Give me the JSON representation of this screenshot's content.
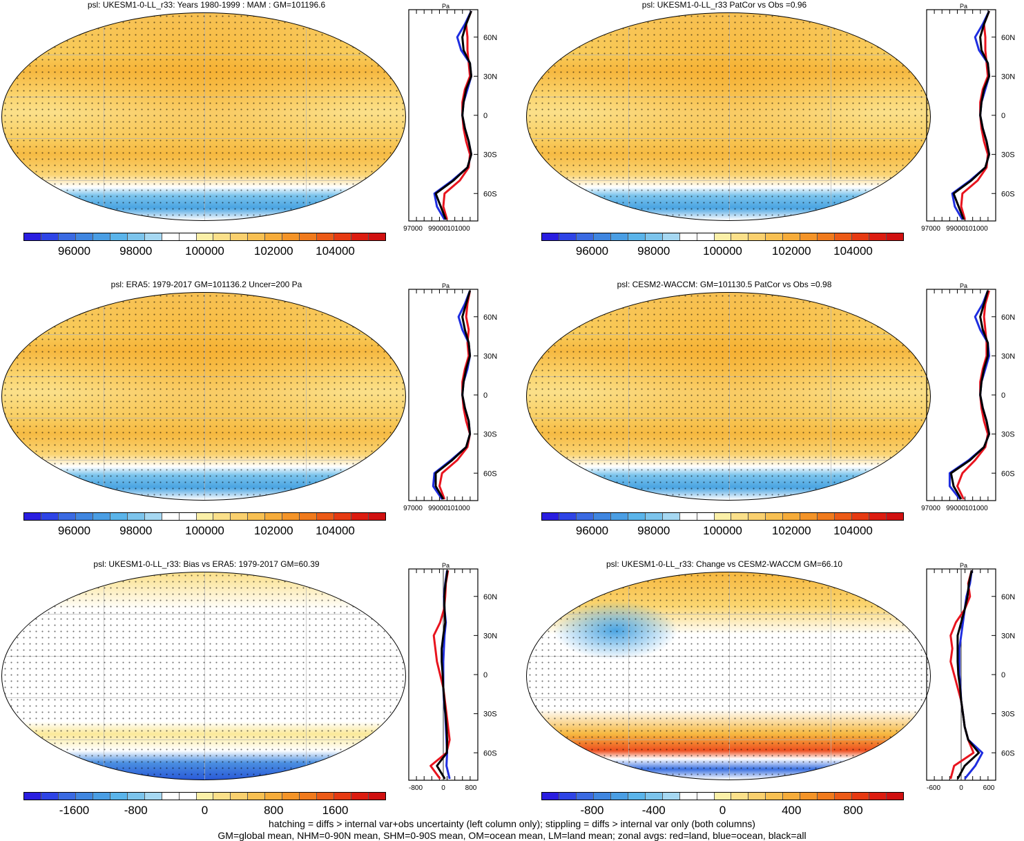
{
  "panels": [
    {
      "title": "psl: UKESM1-0-LL_r33: Years 1980-1999 : MAM : GM=101196.6",
      "kind": "mean",
      "colorbar_labels": [
        "96000",
        "98000",
        "100000",
        "102000",
        "104000"
      ],
      "profile_xticks": [
        "97000",
        "99000",
        "101000"
      ]
    },
    {
      "title": "psl: UKESM1-0-LL_r33 PatCor vs Obs =0.96",
      "kind": "mean",
      "colorbar_labels": [
        "96000",
        "98000",
        "100000",
        "102000",
        "104000"
      ],
      "profile_xticks": [
        "97000",
        "99000",
        "101000"
      ]
    },
    {
      "title": "psl: ERA5: 1979-2017 GM=101136.2 Uncer=200 Pa",
      "kind": "mean",
      "colorbar_labels": [
        "96000",
        "98000",
        "100000",
        "102000",
        "104000"
      ],
      "profile_xticks": [
        "97000",
        "99000",
        "101000"
      ]
    },
    {
      "title": "psl: CESM2-WACCM: GM=101130.5 PatCor vs Obs =0.98",
      "kind": "mean",
      "colorbar_labels": [
        "96000",
        "98000",
        "100000",
        "102000",
        "104000"
      ],
      "profile_xticks": [
        "97000",
        "99000",
        "101000"
      ]
    },
    {
      "title": "psl: UKESM1-0-LL_r33: Bias vs ERA5: 1979-2017 GM=60.39",
      "kind": "bias",
      "colorbar_labels": [
        "-1600",
        "-800",
        "0",
        "800",
        "1600"
      ],
      "profile_xticks": [
        "-800",
        "0",
        "800"
      ]
    },
    {
      "title": "psl: UKESM1-0-LL_r33: Change vs CESM2-WACCM GM=66.10",
      "kind": "change",
      "colorbar_labels": [
        "-800",
        "-400",
        "0",
        "400",
        "800"
      ],
      "profile_xticks": [
        "-600",
        "0",
        "600"
      ]
    }
  ],
  "profile": {
    "unit": "Pa",
    "lat_labels": [
      "60N",
      "30N",
      "0",
      "30S",
      "60S"
    ]
  },
  "footer": {
    "line1": "hatching = diffs > internal var+obs uncertainty (left column only); stippling = diffs > internal var only (both columns)",
    "line2": "GM=global mean, NHM=0-90N mean, SHM=0-90S mean, OM=ocean mean, LM=land mean; zonal avgs: red=land, blue=ocean, black=all"
  },
  "colors": {
    "land": "#e8141e",
    "ocean": "#1f2ee0",
    "all": "#000000",
    "scale": [
      "#2a1ee0",
      "#2e44e6",
      "#3a6ae2",
      "#3f86e0",
      "#4a9ee4",
      "#5ab4ea",
      "#7cc4ec",
      "#a6d8f2",
      "#ffffff",
      "#ffffff",
      "#fbf0a8",
      "#fbe08a",
      "#fad06e",
      "#f8c052",
      "#f6ac3a",
      "#f49428",
      "#f07a1c",
      "#ec5a16",
      "#e63a12",
      "#dc1c10",
      "#d01010"
    ]
  },
  "chart_data": [
    {
      "type": "heatmap",
      "title": "psl: UKESM1-0-LL_r33: Years 1980-1999 : MAM : GM=101196.6",
      "units": "Pa",
      "clim": [
        95000,
        105000
      ],
      "zonal_mean": {
        "lat": [
          80,
          70,
          60,
          50,
          40,
          30,
          20,
          10,
          0,
          -10,
          -20,
          -30,
          -40,
          -50,
          -60,
          -70,
          -80
        ],
        "land": [
          101700,
          101300,
          101400,
          101400,
          101500,
          101600,
          101200,
          101000,
          101000,
          101100,
          101300,
          101600,
          101500,
          100800,
          99600,
          99500,
          99800
        ],
        "ocean": [
          101700,
          101200,
          100600,
          100900,
          101600,
          101700,
          101400,
          101100,
          101000,
          101200,
          101500,
          101700,
          101400,
          100200,
          98800,
          99000,
          99600
        ],
        "all": [
          101700,
          101300,
          101000,
          101100,
          101600,
          101700,
          101300,
          101100,
          101000,
          101200,
          101500,
          101700,
          101400,
          100300,
          98900,
          99300,
          99700
        ]
      },
      "xlim": [
        97000,
        102000
      ]
    },
    {
      "type": "heatmap",
      "title": "psl: UKESM1-0-LL_r33 PatCor vs Obs =0.96",
      "units": "Pa",
      "clim": [
        95000,
        105000
      ],
      "zonal_mean": {
        "lat": [
          80,
          70,
          60,
          50,
          40,
          30,
          20,
          10,
          0,
          -10,
          -20,
          -30,
          -40,
          -50,
          -60,
          -70,
          -80
        ],
        "land": [
          101700,
          101300,
          101400,
          101400,
          101500,
          101600,
          101200,
          101000,
          101000,
          101100,
          101300,
          101600,
          101500,
          100800,
          99600,
          99500,
          99800
        ],
        "ocean": [
          101700,
          101200,
          100600,
          100900,
          101600,
          101700,
          101400,
          101100,
          101000,
          101200,
          101500,
          101700,
          101400,
          100200,
          98800,
          99000,
          99600
        ],
        "all": [
          101700,
          101300,
          101000,
          101100,
          101600,
          101700,
          101300,
          101100,
          101000,
          101200,
          101500,
          101700,
          101400,
          100300,
          98900,
          99300,
          99700
        ]
      },
      "xlim": [
        97000,
        102000
      ]
    },
    {
      "type": "heatmap",
      "title": "psl: ERA5: 1979-2017 GM=101136.2 Uncer=200 Pa",
      "units": "Pa",
      "clim": [
        95000,
        105000
      ],
      "zonal_mean": {
        "lat": [
          80,
          70,
          60,
          50,
          40,
          30,
          20,
          10,
          0,
          -10,
          -20,
          -30,
          -40,
          -50,
          -60,
          -70,
          -80
        ],
        "land": [
          101600,
          101400,
          101300,
          101500,
          101400,
          101500,
          101200,
          101000,
          101000,
          101100,
          101300,
          101600,
          101400,
          100600,
          99400,
          99200,
          99600
        ],
        "ocean": [
          101600,
          101200,
          100700,
          101000,
          101500,
          101600,
          101400,
          101100,
          101000,
          101200,
          101500,
          101600,
          101300,
          100100,
          98800,
          98700,
          99400
        ],
        "all": [
          101600,
          101300,
          101000,
          101200,
          101500,
          101600,
          101300,
          101100,
          101000,
          101200,
          101500,
          101600,
          101300,
          100200,
          98900,
          98900,
          99500
        ]
      },
      "xlim": [
        97000,
        102000
      ]
    },
    {
      "type": "heatmap",
      "title": "psl: CESM2-WACCM: GM=101130.5 PatCor vs Obs =0.98",
      "units": "Pa",
      "clim": [
        95000,
        105000
      ],
      "zonal_mean": {
        "lat": [
          80,
          70,
          60,
          50,
          40,
          30,
          20,
          10,
          0,
          -10,
          -20,
          -30,
          -40,
          -50,
          -60,
          -70,
          -80
        ],
        "land": [
          101700,
          101400,
          101300,
          101400,
          101500,
          101500,
          101200,
          101000,
          101000,
          101100,
          101300,
          101600,
          101400,
          100600,
          99600,
          99200,
          99700
        ],
        "ocean": [
          101600,
          101200,
          100600,
          101000,
          101600,
          101700,
          101400,
          101100,
          101000,
          101200,
          101500,
          101700,
          101300,
          100100,
          98600,
          98600,
          99400
        ],
        "all": [
          101600,
          101300,
          101000,
          101200,
          101600,
          101600,
          101300,
          101100,
          101000,
          101200,
          101500,
          101700,
          101300,
          100200,
          98700,
          98900,
          99500
        ]
      },
      "xlim": [
        97000,
        102000
      ]
    },
    {
      "type": "heatmap",
      "title": "psl: UKESM1-0-LL_r33: Bias vs ERA5: 1979-2017 GM=60.39",
      "units": "Pa",
      "clim": [
        -2000,
        2000
      ],
      "zonal_mean": {
        "lat": [
          80,
          70,
          60,
          50,
          40,
          30,
          20,
          10,
          0,
          -10,
          -20,
          -30,
          -40,
          -50,
          -60,
          -70,
          -80
        ],
        "land": [
          150,
          80,
          60,
          20,
          -100,
          -300,
          -250,
          -200,
          -100,
          0,
          50,
          100,
          150,
          200,
          100,
          -400,
          -100
        ],
        "ocean": [
          120,
          60,
          20,
          40,
          80,
          40,
          20,
          0,
          0,
          0,
          20,
          60,
          80,
          100,
          120,
          100,
          200
        ],
        "all": [
          130,
          70,
          30,
          40,
          60,
          0,
          -50,
          -50,
          -20,
          0,
          30,
          70,
          100,
          120,
          110,
          -200,
          50
        ]
      },
      "xlim": [
        -1000,
        1000
      ]
    },
    {
      "type": "heatmap",
      "title": "psl: UKESM1-0-LL_r33: Change vs CESM2-WACCM GM=66.10",
      "units": "Pa",
      "clim": [
        -1100,
        1100
      ],
      "zonal_mean": {
        "lat": [
          80,
          70,
          60,
          50,
          40,
          30,
          20,
          10,
          0,
          -10,
          -20,
          -30,
          -40,
          -50,
          -60,
          -70,
          -80
        ],
        "land": [
          300,
          200,
          250,
          100,
          -150,
          -300,
          -250,
          -300,
          -200,
          -100,
          0,
          50,
          100,
          200,
          350,
          -200,
          -300
        ],
        "ocean": [
          300,
          250,
          150,
          100,
          50,
          0,
          -50,
          -50,
          -50,
          -20,
          0,
          50,
          100,
          200,
          600,
          400,
          100
        ],
        "all": [
          300,
          220,
          180,
          100,
          0,
          -100,
          -100,
          -100,
          -80,
          -30,
          0,
          50,
          100,
          200,
          500,
          100,
          -100
        ]
      },
      "xlim": [
        -900,
        900
      ]
    }
  ]
}
